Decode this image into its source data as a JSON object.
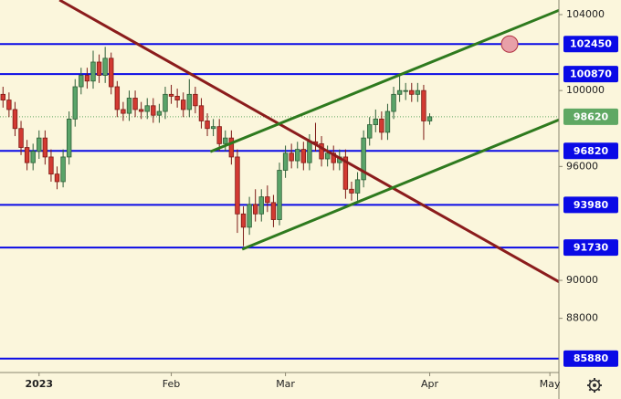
{
  "chart_data": {
    "type": "candlestick",
    "background": "#fbf6dc",
    "categories": [
      null,
      null,
      null,
      null,
      null,
      null,
      "2023",
      null,
      null,
      null,
      null,
      null,
      null,
      null,
      null,
      null,
      null,
      null,
      null,
      null,
      null,
      null,
      null,
      null,
      null,
      null,
      null,
      null,
      "Feb",
      null,
      null,
      null,
      null,
      null,
      null,
      null,
      null,
      null,
      null,
      null,
      null,
      null,
      null,
      null,
      null,
      null,
      null,
      "Mar",
      null,
      null,
      null,
      null,
      null,
      null,
      null,
      null,
      null,
      null,
      null,
      null,
      null,
      null,
      null,
      null,
      null,
      null,
      null,
      null,
      null,
      null,
      null,
      "Apr",
      null,
      null,
      null,
      null,
      null,
      null,
      null,
      null,
      null,
      null,
      null,
      null,
      null,
      null,
      null,
      null,
      null,
      null,
      null,
      "May",
      null
    ],
    "open": [
      99800,
      99500,
      99000,
      98000,
      97000,
      96200,
      96800,
      97500,
      96500,
      95600,
      95200,
      96500,
      98500,
      100200,
      100800,
      100500,
      101500,
      100800,
      101700,
      100200,
      99000,
      98800,
      99600,
      99000,
      98900,
      99200,
      98700,
      98900,
      99800,
      99700,
      99500,
      99000,
      99800,
      99200,
      98400,
      98000,
      98100,
      97200,
      97500,
      96500,
      93500,
      92800,
      94000,
      93500,
      94400,
      94100,
      93200,
      95800,
      96700,
      96300,
      96900,
      96200,
      97300,
      97200,
      96400,
      96700,
      96200,
      96500,
      94800,
      94600,
      95300,
      97500,
      98200,
      98500,
      97800,
      98900,
      99800,
      100000,
      100000,
      99800,
      100000,
      98400,
      null,
      null,
      null,
      null,
      null,
      null,
      null,
      null,
      null,
      null,
      null,
      null,
      null,
      null,
      null,
      null,
      null,
      null,
      null,
      null,
      null
    ],
    "high": [
      100200,
      99900,
      99400,
      98400,
      97400,
      97200,
      97900,
      97900,
      96900,
      96000,
      96900,
      98900,
      100600,
      101200,
      101200,
      102100,
      101900,
      102300,
      102000,
      100500,
      99400,
      100000,
      100000,
      99400,
      99600,
      99600,
      99300,
      100200,
      100300,
      100100,
      99900,
      100600,
      100200,
      99600,
      98800,
      98500,
      98500,
      97900,
      97900,
      96900,
      93900,
      94400,
      94800,
      94800,
      95000,
      94500,
      96200,
      97100,
      97200,
      97300,
      97300,
      97700,
      98300,
      97600,
      97100,
      97100,
      96900,
      96900,
      95200,
      95700,
      97900,
      98600,
      99000,
      98900,
      99300,
      100200,
      100800,
      100400,
      100400,
      100400,
      100300,
      98800,
      null,
      null,
      null,
      null,
      null,
      null,
      null,
      null,
      null,
      null,
      null,
      null,
      null,
      null,
      null,
      null,
      null,
      null,
      null,
      null,
      null
    ],
    "low": [
      99100,
      98600,
      97600,
      96600,
      95800,
      95800,
      96400,
      96100,
      95200,
      94800,
      94900,
      96100,
      98100,
      99800,
      100100,
      100100,
      100400,
      100400,
      99800,
      98600,
      98400,
      98400,
      98600,
      98500,
      98500,
      98300,
      98300,
      98500,
      99300,
      99100,
      98600,
      98600,
      98800,
      98000,
      97600,
      97600,
      96800,
      96800,
      96100,
      92500,
      91800,
      92400,
      93100,
      93100,
      93600,
      92800,
      92900,
      95400,
      95900,
      95900,
      95800,
      95800,
      96800,
      96000,
      96000,
      95800,
      95800,
      94300,
      94200,
      94200,
      94900,
      97100,
      97800,
      97400,
      97400,
      98500,
      99400,
      99500,
      99400,
      99400,
      97400,
      98200,
      null,
      null,
      null,
      null,
      null,
      null,
      null,
      null,
      null,
      null,
      null,
      null,
      null,
      null,
      null,
      null,
      null,
      null,
      null,
      null,
      null
    ],
    "close": [
      99500,
      99000,
      98000,
      97000,
      96200,
      96800,
      97500,
      96500,
      95600,
      95200,
      96500,
      98500,
      100200,
      100800,
      100500,
      101500,
      100800,
      101700,
      100200,
      99000,
      98800,
      99600,
      99000,
      98900,
      99200,
      98700,
      98900,
      99800,
      99700,
      99500,
      99000,
      99800,
      99200,
      98400,
      98000,
      98100,
      97200,
      97500,
      96500,
      93500,
      92800,
      94000,
      93500,
      94400,
      94100,
      93200,
      95800,
      96700,
      96300,
      96900,
      96200,
      97300,
      97200,
      96400,
      96700,
      96200,
      96500,
      94800,
      94600,
      95300,
      97500,
      98200,
      98500,
      97800,
      98900,
      99800,
      100000,
      100000,
      99800,
      100000,
      98400,
      98620,
      null,
      null,
      null,
      null,
      null,
      null,
      null,
      null,
      null,
      null,
      null,
      null,
      null,
      null,
      null,
      null,
      null,
      null,
      null,
      null,
      null
    ],
    "up_color": "#5aa469",
    "down_color": "#d23a32",
    "ylim": [
      85145,
      104770
    ],
    "yticks": [
      104000,
      100000,
      96000,
      90000,
      88000
    ],
    "levels": [
      {
        "value": 102450,
        "color": "#0a0ae6"
      },
      {
        "value": 100870,
        "color": "#0a0ae6"
      },
      {
        "value": 96820,
        "color": "#0a0ae6"
      },
      {
        "value": 93980,
        "color": "#0a0ae6"
      },
      {
        "value": 91730,
        "color": "#0a0ae6"
      },
      {
        "value": 85880,
        "color": "#0a0ae6"
      }
    ],
    "last_price": 98620,
    "last_price_color": "#5fa863",
    "trendlines": [
      {
        "color": "#8b1c1c",
        "x": [
          9.4,
          93.7
        ],
        "values": [
          104770,
          89710
        ]
      },
      {
        "color": "#2e7a1e",
        "x": [
          34.5,
          93.7
        ],
        "values": [
          96780,
          104380
        ]
      },
      {
        "color": "#2e7a1e",
        "x": [
          39.8,
          93.7
        ],
        "values": [
          91640,
          98610
        ]
      }
    ],
    "marker": {
      "x": 84.3,
      "value": 102450,
      "color": "#e8a0a8"
    }
  }
}
